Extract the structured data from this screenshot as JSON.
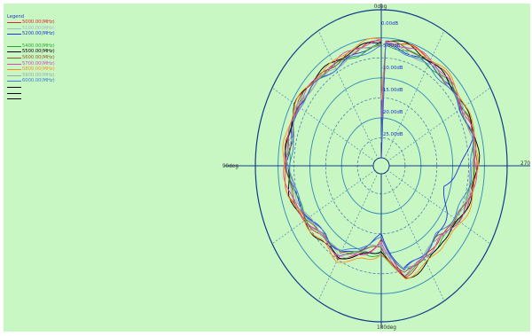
{
  "legend": {
    "title": "Legend",
    "groups": [
      [
        {
          "label": "5000.00(MHz)",
          "color": "#e0242a"
        },
        {
          "label": "5100.00(MHz)",
          "color": "#a0b8c8"
        },
        {
          "label": "5200.00(MHz)",
          "color": "#1c33d6"
        }
      ],
      [
        {
          "label": "5400.00(MHz)",
          "color": "#2aa52a"
        },
        {
          "label": "5500.00(MHz)",
          "color": "#000000"
        },
        {
          "label": "5600.00(MHz)",
          "color": "#8b5a2b"
        },
        {
          "label": "5700.00(MHz)",
          "color": "#e040c0"
        },
        {
          "label": "5800.00(MHz)",
          "color": "#ff8c1a"
        },
        {
          "label": "5900.00(MHz)",
          "color": "#9aa8b0"
        },
        {
          "label": "6000.00(MHz)",
          "color": "#3a7ad8"
        }
      ]
    ]
  },
  "chart_data": {
    "type": "line",
    "subtype": "polar",
    "angle_labels": {
      "top": "0deg",
      "left": "90deg",
      "right": "270deg",
      "bottom": "180deg"
    },
    "radial_tick_labels": [
      "0.00dB",
      "-5.00dB",
      "-10.00dB",
      "-15.00dB",
      "-20.00dB",
      "-25.00dB"
    ],
    "radial_range_db": [
      -30,
      0
    ],
    "angle_units": "deg",
    "grid": true,
    "legend_position": "top-left",
    "series": [
      {
        "name": "5000.00(MHz)",
        "color": "#e0242a",
        "angles_deg": [
          0,
          15,
          30,
          45,
          60,
          75,
          90,
          105,
          120,
          135,
          150,
          165,
          180,
          195,
          210,
          225,
          240,
          255,
          270,
          285,
          300,
          315,
          330,
          345
        ],
        "values_db": [
          -0.8,
          -2.5,
          -3.5,
          -2.0,
          -1.5,
          -2.5,
          -2.0,
          -3.0,
          -5.0,
          -6.5,
          -5.5,
          -9.0,
          -14.0,
          -3.5,
          -5.0,
          -6.5,
          -5.0,
          -3.5,
          -3.0,
          -2.0,
          -3.0,
          -2.0,
          -1.5,
          -1.0
        ]
      },
      {
        "name": "5100.00(MHz)",
        "color": "#a0b8c8",
        "angles_deg": [
          0,
          15,
          30,
          45,
          60,
          75,
          90,
          105,
          120,
          135,
          150,
          165,
          180,
          195,
          210,
          225,
          240,
          255,
          270,
          285,
          300,
          315,
          330,
          345
        ],
        "values_db": [
          -1.0,
          -2.0,
          -3.0,
          -2.5,
          -2.0,
          -3.0,
          -2.5,
          -3.5,
          -5.5,
          -7.0,
          -6.0,
          -10.0,
          -13.0,
          -4.5,
          -6.0,
          -7.0,
          -5.5,
          -4.0,
          -3.5,
          -2.5,
          -3.5,
          -2.5,
          -2.0,
          -1.5
        ]
      },
      {
        "name": "5200.00(MHz)",
        "color": "#1c33d6",
        "angles_deg": [
          0,
          15,
          30,
          45,
          60,
          75,
          90,
          105,
          120,
          135,
          150,
          165,
          180,
          195,
          210,
          225,
          240,
          255,
          270,
          285,
          300,
          315,
          330,
          345
        ],
        "values_db": [
          -1.5,
          -3.0,
          -3.5,
          -3.0,
          -2.5,
          -3.5,
          -3.0,
          -4.0,
          -6.0,
          -8.0,
          -7.0,
          -11.0,
          -14.5,
          -5.0,
          -6.5,
          -7.5,
          -9.0,
          -12.0,
          -7.0,
          -3.0,
          -4.0,
          -3.0,
          -2.5,
          -2.0
        ]
      },
      {
        "name": "5400.00(MHz)",
        "color": "#2aa52a",
        "angles_deg": [
          0,
          15,
          30,
          45,
          60,
          75,
          90,
          105,
          120,
          135,
          150,
          165,
          180,
          195,
          210,
          225,
          240,
          255,
          270,
          285,
          300,
          315,
          330,
          345
        ],
        "values_db": [
          -2.0,
          -3.0,
          -3.0,
          -2.5,
          -2.5,
          -3.0,
          -3.0,
          -4.5,
          -5.5,
          -7.5,
          -6.5,
          -9.5,
          -9.0,
          -4.0,
          -5.5,
          -6.0,
          -4.5,
          -3.5,
          -3.5,
          -2.5,
          -3.0,
          -2.5,
          -2.5,
          -2.0
        ]
      },
      {
        "name": "5500.00(MHz)",
        "color": "#000000",
        "angles_deg": [
          0,
          15,
          30,
          45,
          60,
          75,
          90,
          105,
          120,
          135,
          150,
          165,
          180,
          195,
          210,
          225,
          240,
          255,
          270,
          285,
          300,
          315,
          330,
          345
        ],
        "values_db": [
          -0.5,
          -1.5,
          -2.5,
          -2.0,
          -1.5,
          -2.0,
          -2.5,
          -3.0,
          -4.5,
          -6.0,
          -5.5,
          -8.5,
          -11.0,
          -3.0,
          -4.0,
          -5.5,
          -4.0,
          -3.0,
          -2.5,
          -2.0,
          -2.5,
          -2.0,
          -1.5,
          -1.0
        ]
      },
      {
        "name": "5600.00(MHz)",
        "color": "#8b5a2b",
        "angles_deg": [
          0,
          15,
          30,
          45,
          60,
          75,
          90,
          105,
          120,
          135,
          150,
          165,
          180,
          195,
          210,
          225,
          240,
          255,
          270,
          285,
          300,
          315,
          330,
          345
        ],
        "values_db": [
          -1.2,
          -2.2,
          -3.2,
          -2.8,
          -2.2,
          -3.2,
          -2.8,
          -3.8,
          -5.2,
          -7.2,
          -6.2,
          -10.5,
          -12.0,
          -4.2,
          -5.8,
          -6.8,
          -5.2,
          -3.8,
          -3.2,
          -2.8,
          -3.2,
          -2.8,
          -2.2,
          -1.8
        ]
      },
      {
        "name": "5700.00(MHz)",
        "color": "#e040c0",
        "angles_deg": [
          0,
          15,
          30,
          45,
          60,
          75,
          90,
          105,
          120,
          135,
          150,
          165,
          180,
          195,
          210,
          225,
          240,
          255,
          270,
          285,
          300,
          315,
          330,
          345
        ],
        "values_db": [
          -1.0,
          -1.8,
          -2.8,
          -2.2,
          -1.8,
          -2.6,
          -2.2,
          -3.2,
          -4.8,
          -6.6,
          -5.8,
          -9.6,
          -12.5,
          -3.8,
          -5.2,
          -6.2,
          -4.8,
          -3.4,
          -2.8,
          -2.2,
          -2.8,
          -2.2,
          -1.8,
          -1.2
        ]
      },
      {
        "name": "5800.00(MHz)",
        "color": "#ff8c1a",
        "angles_deg": [
          0,
          15,
          30,
          45,
          60,
          75,
          90,
          105,
          120,
          135,
          150,
          165,
          180,
          195,
          210,
          225,
          240,
          255,
          270,
          285,
          300,
          315,
          330,
          345
        ],
        "values_db": [
          -0.6,
          -1.2,
          -2.2,
          -1.6,
          -1.2,
          -2.0,
          -1.8,
          -2.6,
          -4.0,
          -5.6,
          -5.0,
          -8.0,
          -10.0,
          -2.6,
          -3.6,
          -5.0,
          -3.8,
          -2.6,
          -2.2,
          -1.6,
          -2.2,
          -1.6,
          -1.2,
          -0.8
        ]
      },
      {
        "name": "5900.00(MHz)",
        "color": "#9aa8b0",
        "angles_deg": [
          0,
          15,
          30,
          45,
          60,
          75,
          90,
          105,
          120,
          135,
          150,
          165,
          180,
          195,
          210,
          225,
          240,
          255,
          270,
          285,
          300,
          315,
          330,
          345
        ],
        "values_db": [
          -1.6,
          -2.6,
          -3.4,
          -3.0,
          -2.6,
          -3.4,
          -3.2,
          -4.2,
          -5.8,
          -7.8,
          -6.8,
          -10.8,
          -12.0,
          -4.6,
          -6.2,
          -7.2,
          -5.6,
          -4.2,
          -3.6,
          -3.0,
          -3.6,
          -3.0,
          -2.6,
          -2.2
        ]
      },
      {
        "name": "6000.00(MHz)",
        "color": "#3a7ad8",
        "angles_deg": [
          0,
          15,
          30,
          45,
          60,
          75,
          90,
          105,
          120,
          135,
          150,
          165,
          180,
          195,
          210,
          225,
          240,
          255,
          270,
          285,
          300,
          315,
          330,
          345
        ],
        "values_db": [
          -2.2,
          -3.2,
          -3.8,
          -3.4,
          -3.0,
          -3.8,
          -3.6,
          -4.6,
          -6.2,
          -8.2,
          -7.2,
          -11.2,
          -13.5,
          -5.2,
          -6.8,
          -7.8,
          -6.0,
          -4.6,
          -4.0,
          -3.4,
          -4.0,
          -3.4,
          -3.0,
          -2.6
        ]
      }
    ]
  }
}
